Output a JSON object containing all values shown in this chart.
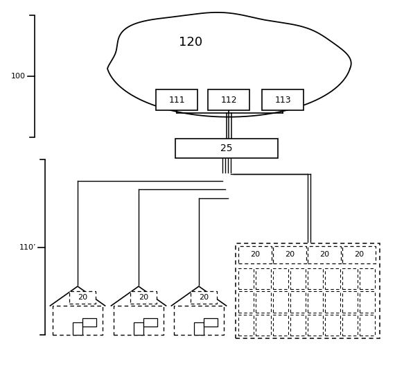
{
  "bg_color": "#ffffff",
  "cloud_label": "120",
  "box_labels": [
    "111",
    "112",
    "113"
  ],
  "box25_label": "25",
  "brace_label_100": "100",
  "brace_label_110": "110’",
  "house_labels": [
    "20",
    "20",
    "20"
  ],
  "building_col_labels": [
    "20",
    "20",
    "20",
    "20"
  ],
  "line_color": "#000000"
}
